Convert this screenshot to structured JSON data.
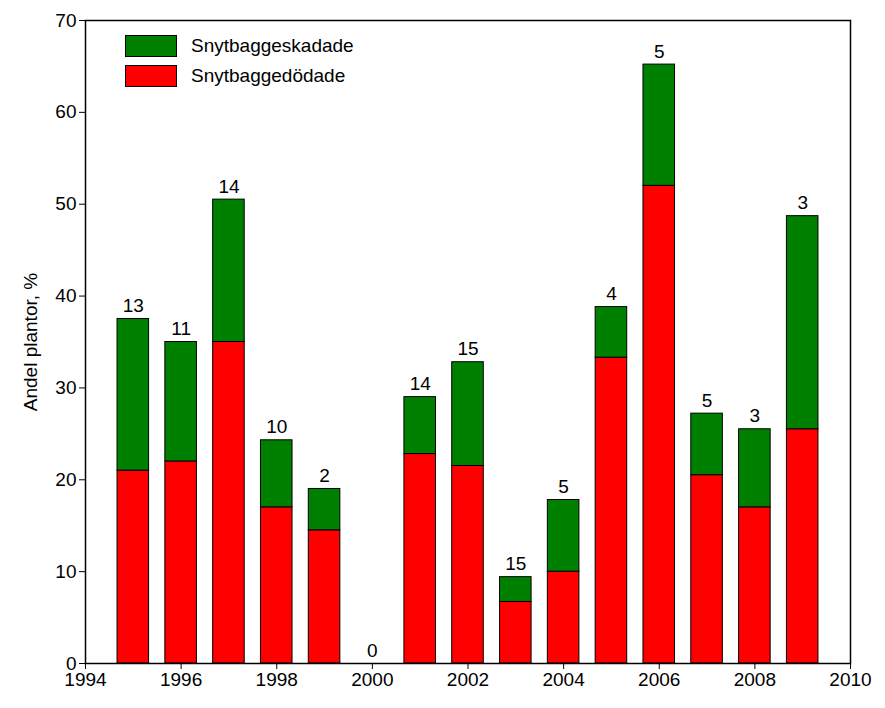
{
  "chart_data": {
    "type": "bar",
    "stacked": true,
    "x": [
      1995,
      1996,
      1997,
      1998,
      1999,
      2000,
      2001,
      2002,
      2003,
      2004,
      2005,
      2006,
      2007,
      2008,
      2009
    ],
    "series": [
      {
        "name": "Snytbaggedödade",
        "color": "#ff0000",
        "values": [
          21,
          22,
          35,
          17,
          14.5,
          0,
          22.8,
          21.5,
          6.7,
          10,
          33.3,
          52,
          20.5,
          17,
          25.5
        ]
      },
      {
        "name": "Snytbaggeskadade",
        "color": "#008000",
        "values": [
          16.5,
          13,
          15.5,
          7.3,
          4.5,
          0,
          6.2,
          11.3,
          2.7,
          7.8,
          5.5,
          13.2,
          6.7,
          8.5,
          23.2
        ]
      }
    ],
    "n": [
      13,
      11,
      14,
      10,
      2,
      0,
      14,
      15,
      15,
      5,
      4,
      5,
      5,
      3,
      3
    ],
    "y_label": "Andel plantor, %",
    "xlim": [
      1994,
      2010
    ],
    "xticks": [
      1994,
      1996,
      1998,
      2000,
      2002,
      2004,
      2006,
      2008,
      2010
    ],
    "ylim": [
      0,
      70
    ],
    "yticks": [
      0,
      10,
      20,
      30,
      40,
      50,
      60,
      70
    ],
    "legend": "upper left",
    "grid": false
  }
}
